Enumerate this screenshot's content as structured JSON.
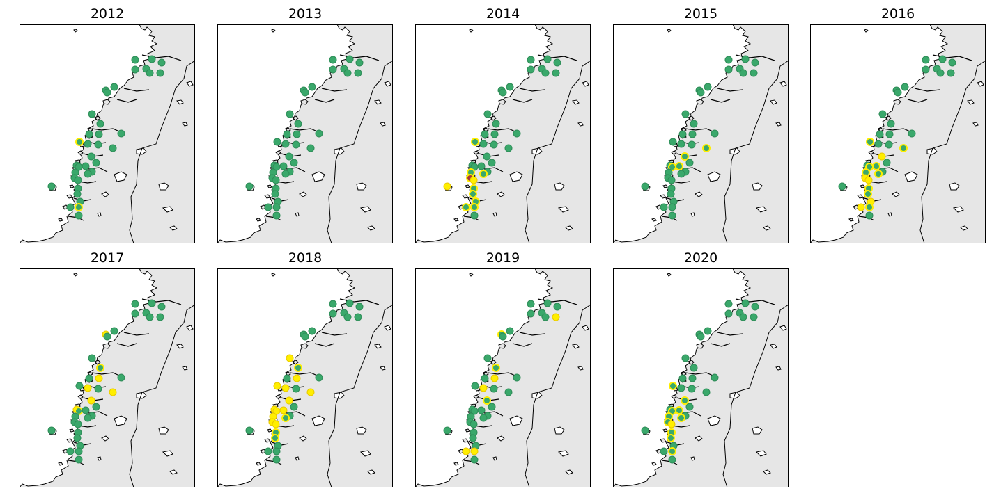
{
  "colors": {
    "land": "#e6e6e6",
    "sea": "#ffffff",
    "coastline": "#000000",
    "border": "#000000",
    "status_green": "#3aa86b",
    "status_green_edge": "#2e8b57",
    "status_yellow": "#ffee00",
    "status_yellow_edge": "#e8c800",
    "status_red": "#a83a3a"
  },
  "panels": [
    {
      "title": "2012"
    },
    {
      "title": "2013"
    },
    {
      "title": "2014"
    },
    {
      "title": "2015"
    },
    {
      "title": "2016"
    },
    {
      "title": "2017"
    },
    {
      "title": "2018"
    },
    {
      "title": "2019"
    },
    {
      "title": "2020"
    }
  ],
  "sites": [
    {
      "id": 1,
      "status": [
        "G",
        "G",
        "G",
        "G",
        "G",
        "G",
        "G",
        "G",
        "G"
      ]
    },
    {
      "id": 2,
      "status": [
        "G",
        "G",
        "G",
        "G",
        "G",
        "G",
        "G",
        "G",
        "G"
      ]
    },
    {
      "id": 3,
      "status": [
        "G",
        "G",
        "G",
        "G",
        "G",
        "G",
        "G",
        "G",
        "G"
      ]
    },
    {
      "id": 4,
      "status": [
        "G",
        "G",
        "G",
        "G",
        "G",
        "G",
        "G",
        "G",
        "G"
      ]
    },
    {
      "id": 5,
      "status": [
        "G",
        "G",
        "G",
        "G",
        "G",
        "G",
        "G",
        "G",
        "G"
      ]
    },
    {
      "id": 6,
      "status": [
        "G",
        "G",
        "G",
        "G",
        "G",
        "G",
        "G",
        "Y",
        "G"
      ]
    },
    {
      "id": 7,
      "status": [
        "G",
        "G",
        "G",
        "G",
        "G",
        "G",
        "G",
        "G",
        "G"
      ]
    },
    {
      "id": 8,
      "status": [
        "G",
        "G",
        "G",
        "G",
        "G",
        "Y",
        "G",
        "YG",
        "G"
      ]
    },
    {
      "id": 9,
      "status": [
        "G",
        "G",
        "G",
        "G",
        "G",
        "G",
        "G",
        "G",
        "G"
      ]
    },
    {
      "id": 10,
      "status": [
        "G",
        "G",
        "G",
        "G",
        "G",
        "G",
        "G",
        "G",
        "G"
      ]
    },
    {
      "id": 11,
      "status": [
        "G",
        "G",
        "G",
        "G",
        "G",
        "G",
        "Y",
        "G",
        "G"
      ]
    },
    {
      "id": 12,
      "status": [
        "G",
        "G",
        "G",
        "G",
        "G",
        "YG",
        "YG",
        "YG",
        "G"
      ]
    },
    {
      "id": 13,
      "status": [
        "G",
        "G",
        "G",
        "G",
        "G",
        "Y",
        "Y",
        "Y",
        "G"
      ]
    },
    {
      "id": 14,
      "status": [
        "G",
        "G",
        "G",
        "G",
        "G",
        "G",
        "G",
        "G",
        "G"
      ]
    },
    {
      "id": 15,
      "status": [
        "G",
        "G",
        "G",
        "G",
        "G",
        "Y",
        "Y",
        "Y",
        "G"
      ]
    },
    {
      "id": 16,
      "status": [
        "G",
        "G",
        "G",
        "G",
        "G",
        "G",
        "G",
        "G",
        "G"
      ]
    },
    {
      "id": 17,
      "status": [
        "G",
        "G",
        "G",
        "G",
        "G",
        "G",
        "G",
        "G",
        "G"
      ]
    },
    {
      "id": 18,
      "status": [
        "YG",
        "G",
        "YG",
        "G",
        "YG",
        "G",
        "Y",
        "G",
        "YG"
      ]
    },
    {
      "id": 19,
      "status": [
        "G",
        "G",
        "G",
        "YG",
        "YG",
        "Y",
        "Y",
        "G",
        "G"
      ]
    },
    {
      "id": 20,
      "status": [
        "G",
        "G",
        "G",
        "YG",
        "Y",
        "Y",
        "Y",
        "YG",
        "YG"
      ]
    },
    {
      "id": 21,
      "status": [
        "G",
        "G",
        "G",
        "G",
        "G",
        "Y",
        "Y",
        "G",
        "G"
      ]
    },
    {
      "id": 22,
      "status": [
        "G",
        "G",
        "G",
        "YG",
        "YG",
        "YG",
        "Y",
        "G",
        "YG"
      ]
    },
    {
      "id": 23,
      "status": [
        "G",
        "G",
        "G",
        "G",
        "G",
        "G",
        "G",
        "G",
        "G"
      ]
    },
    {
      "id": 24,
      "status": [
        "G",
        "G",
        "G",
        "YG",
        "YG",
        "G",
        "Y",
        "G",
        "YG"
      ]
    },
    {
      "id": 25,
      "status": [
        "G",
        "G",
        "G",
        "G",
        "G",
        "G",
        "G",
        "G",
        "G"
      ]
    },
    {
      "id": 26,
      "status": [
        "G",
        "G",
        "YG",
        "G",
        "YG",
        "G",
        "YG",
        "G",
        "YG"
      ]
    },
    {
      "id": 27,
      "status": [
        "G",
        "G",
        "YG",
        "G",
        "YG",
        "G",
        "Y",
        "G",
        "YG"
      ]
    },
    {
      "id": 28,
      "status": [
        "G",
        "G",
        "R",
        "G",
        "Y",
        "G",
        "Y",
        "G",
        "YG"
      ]
    },
    {
      "id": 29,
      "status": [
        "G",
        "G",
        "Y",
        "G",
        "Y",
        "G",
        "Y",
        "G",
        "Y"
      ]
    },
    {
      "id": 30,
      "status": [
        "G",
        "G",
        "YG",
        "G",
        "YG",
        "G",
        "YG",
        "G",
        "YG"
      ]
    },
    {
      "id": 31,
      "status": [
        "G",
        "G",
        "YG",
        "G",
        "YG",
        "G",
        "YG",
        "G",
        "YG"
      ]
    },
    {
      "id": 32,
      "status": [
        "G",
        "G",
        "Y",
        "G",
        "G",
        "G",
        "G",
        "G",
        "G"
      ]
    },
    {
      "id": 33,
      "status": [
        "G",
        "G",
        "YG",
        "G",
        "Y",
        "G",
        "G",
        "G",
        "G"
      ]
    },
    {
      "id": 34,
      "status": [
        "YG",
        "G",
        "YG",
        "G",
        "YG",
        "G",
        "G",
        "Y",
        "YG"
      ]
    },
    {
      "id": 35,
      "status": [
        "G",
        "G",
        "YG",
        "G",
        "Y",
        "G",
        "G",
        "Y",
        "G"
      ]
    },
    {
      "id": 36,
      "status": [
        "G",
        "G",
        "G",
        "G",
        "G",
        "G",
        "G",
        "G",
        "G"
      ]
    }
  ]
}
